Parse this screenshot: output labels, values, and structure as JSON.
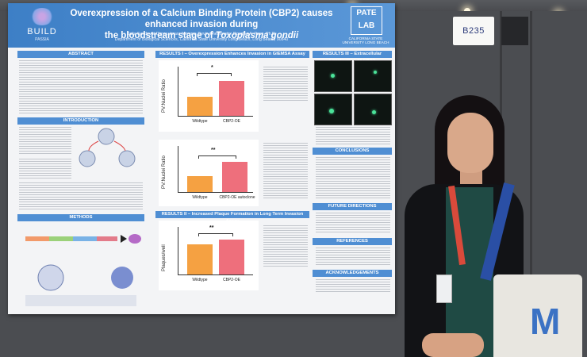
{
  "poster": {
    "logo_left": "BUILD",
    "logo_left_sub": "PASSIA",
    "title_line1": "Overexpression of a Calcium Binding Protein (CBP2) causes enhanced invasion during",
    "title_line2": "the bloodstream stage of",
    "title_species": "Toxoplasma gondii",
    "authors": "Dalia Sandoval-Olmos, Imara Moreno, Devin Chernavsky, Douglas A. Pace, Ph.D.",
    "affiliation": "Department of Biological Sciences, California State University Long Beach, Long Beach, 90840",
    "logo_right": "PATE LAB",
    "logo_right_sub": "CALIFORNIA STATE UNIVERSITY LONG BEACH",
    "sections": {
      "abstract": "ABSTRACT",
      "introduction": "INTRODUCTION",
      "methods": "METHODS",
      "results1": "RESULTS I – Overexpression Enhances Invasion in GIEMSA Assay",
      "results2": "RESULTS II – Increased Plaque Formation in Long Term Invasion Assay",
      "results3": "RESULTS III – Extracellular Localization of CBP2",
      "conclusions": "CONCLUSIONS",
      "future": "FUTURE DIRECTIONS",
      "references": "REFERENCES",
      "ack": "ACKNOWLEDGEMENTS"
    },
    "chart1": {
      "ylabel": "PV:Nuclei Ratio",
      "cat1": "Wildtype",
      "cat2": "CBP2-OE",
      "sig": "*"
    },
    "chart2": {
      "ylabel": "PV:Nuclei Ratio",
      "cat1": "Wildtype",
      "cat2": "CBP2-OE autoclone",
      "sig": "**"
    },
    "chart3": {
      "ylabel": "Plaques/well",
      "cat1": "Wildtype",
      "cat2": "CBP2-OE",
      "sig": "**"
    },
    "colors": {
      "wildtype": "#f5a142",
      "cbp2": "#ee6f7c",
      "banner": "#4a8ad0"
    }
  },
  "booth_sign": "B235",
  "bag_logo": "M"
}
